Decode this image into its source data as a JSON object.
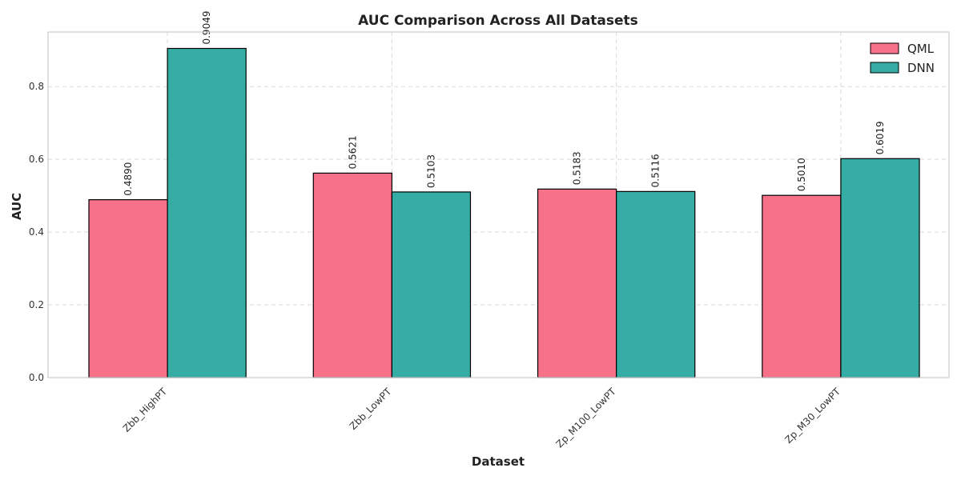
{
  "chart_data": {
    "type": "bar",
    "title": "AUC Comparison Across All Datasets",
    "xlabel": "Dataset",
    "ylabel": "AUC",
    "categories": [
      "Zbb_HighPT",
      "Zbb_LowPT",
      "Zp_M100_LowPT",
      "Zp_M30_LowPT"
    ],
    "series": [
      {
        "name": "QML",
        "values": [
          0.489,
          0.5621,
          0.5183,
          0.501
        ],
        "labels": [
          "0.4890",
          "0.5621",
          "0.5183",
          "0.5010"
        ],
        "color": "#f77189"
      },
      {
        "name": "DNN",
        "values": [
          0.9049,
          0.5103,
          0.5116,
          0.6019
        ],
        "labels": [
          "0.9049",
          "0.5103",
          "0.5116",
          "0.6019"
        ],
        "color": "#36ada4"
      }
    ],
    "ylim": [
      0,
      0.95
    ],
    "yticks": [
      "0.0",
      "0.2",
      "0.4",
      "0.6",
      "0.8"
    ],
    "grid": true,
    "legend_position": "top-right"
  }
}
